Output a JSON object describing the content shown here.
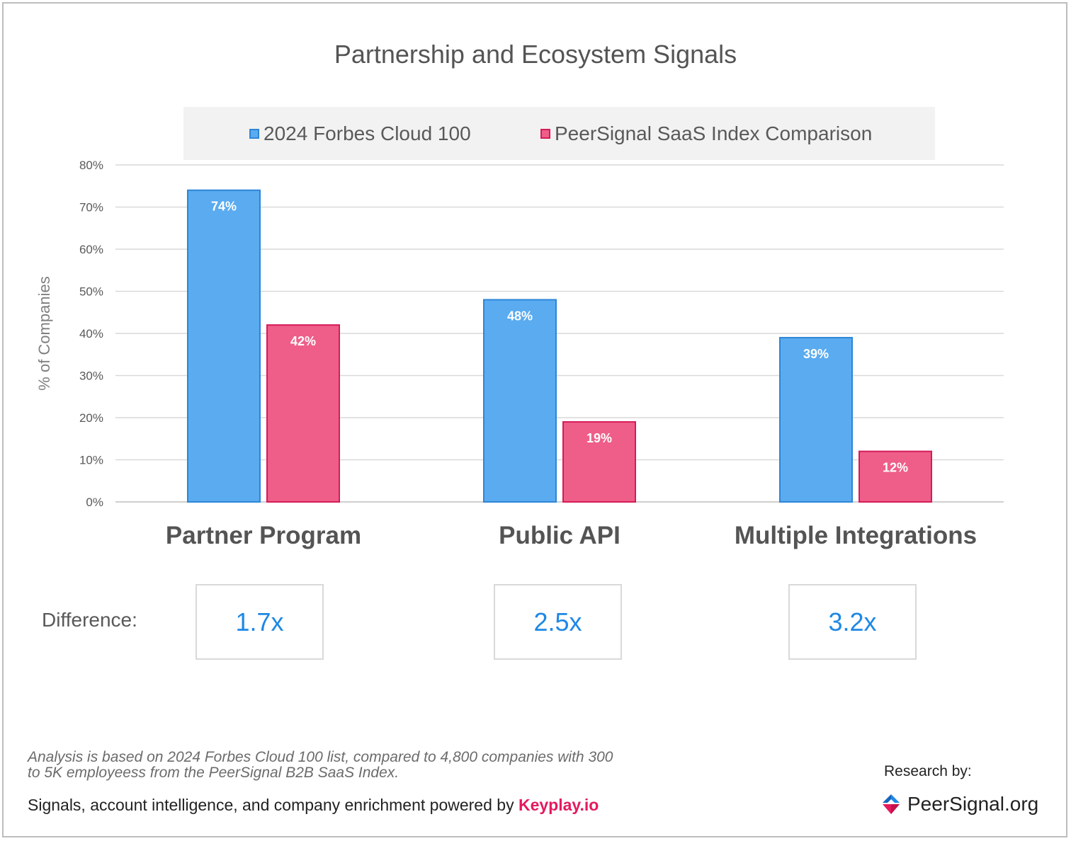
{
  "colors": {
    "forbes": "#5aabf0",
    "forbes_border": "#2e86d6",
    "peersignal": "#ee5e89",
    "peersignal_border": "#d61b58",
    "diff_text": "#1e88e5",
    "brand_pink": "#e5195e"
  },
  "chart_data": {
    "type": "bar",
    "title": "Partnership and Ecosystem Signals",
    "categories": [
      "Partner Program",
      "Public API",
      "Multiple Integrations"
    ],
    "series": [
      {
        "name": "2024 Forbes Cloud 100",
        "values": [
          74,
          48,
          39
        ],
        "labels": [
          "74%",
          "48%",
          "39%"
        ]
      },
      {
        "name": "PeerSignal SaaS Index Comparison",
        "values": [
          42,
          19,
          12
        ],
        "labels": [
          "42%",
          "19%",
          "12%"
        ]
      }
    ],
    "ylabel": "% of Companies",
    "ylim": [
      0,
      80
    ],
    "yticks": [
      "0%",
      "10%",
      "20%",
      "30%",
      "40%",
      "50%",
      "60%",
      "70%",
      "80%"
    ],
    "grid": true,
    "legend_position": "top"
  },
  "difference": {
    "label": "Difference:",
    "values": [
      "1.7x",
      "2.5x",
      "3.2x"
    ]
  },
  "footer": {
    "footnote_line1": "Analysis is based on 2024 Forbes Cloud 100 list, compared to 4,800 companies with 300",
    "footnote_line2": "to 5K employeess from the PeerSignal B2B SaaS Index.",
    "powered_text": "Signals, account intelligence, and company enrichment powered by ",
    "powered_brand": "Keyplay.io",
    "research_by": "Research by:",
    "research_brand": "PeerSignal.org",
    "research_logo_icon": "peersignal-logo-icon"
  }
}
